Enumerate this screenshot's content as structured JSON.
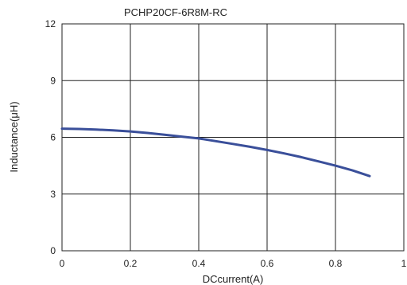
{
  "chart_data": {
    "type": "line",
    "title": "PCHP20CF-6R8M-RC",
    "xlabel": "DCcurrent(A)",
    "ylabel": "Inductance(μH)",
    "xlim": [
      0,
      1
    ],
    "ylim": [
      0,
      12
    ],
    "xticks": [
      0,
      0.2,
      0.4,
      0.6,
      0.8,
      1
    ],
    "xtick_labels": [
      "0",
      "0.2",
      "0.4",
      "0.6",
      "0.8",
      "1"
    ],
    "yticks": [
      0,
      3,
      6,
      9,
      12
    ],
    "ytick_labels": [
      "0",
      "3",
      "6",
      "9",
      "12"
    ],
    "grid": true,
    "series_color": "#3a4f9a",
    "series": [
      {
        "x": [
          0,
          0.05,
          0.1,
          0.15,
          0.2,
          0.25,
          0.3,
          0.35,
          0.4,
          0.45,
          0.5,
          0.55,
          0.6,
          0.65,
          0.7,
          0.75,
          0.8,
          0.85,
          0.9
        ],
        "values": [
          6.46,
          6.44,
          6.41,
          6.37,
          6.31,
          6.23,
          6.14,
          6.04,
          5.94,
          5.8,
          5.65,
          5.5,
          5.33,
          5.15,
          4.95,
          4.73,
          4.5,
          4.25,
          3.95
        ]
      }
    ]
  }
}
